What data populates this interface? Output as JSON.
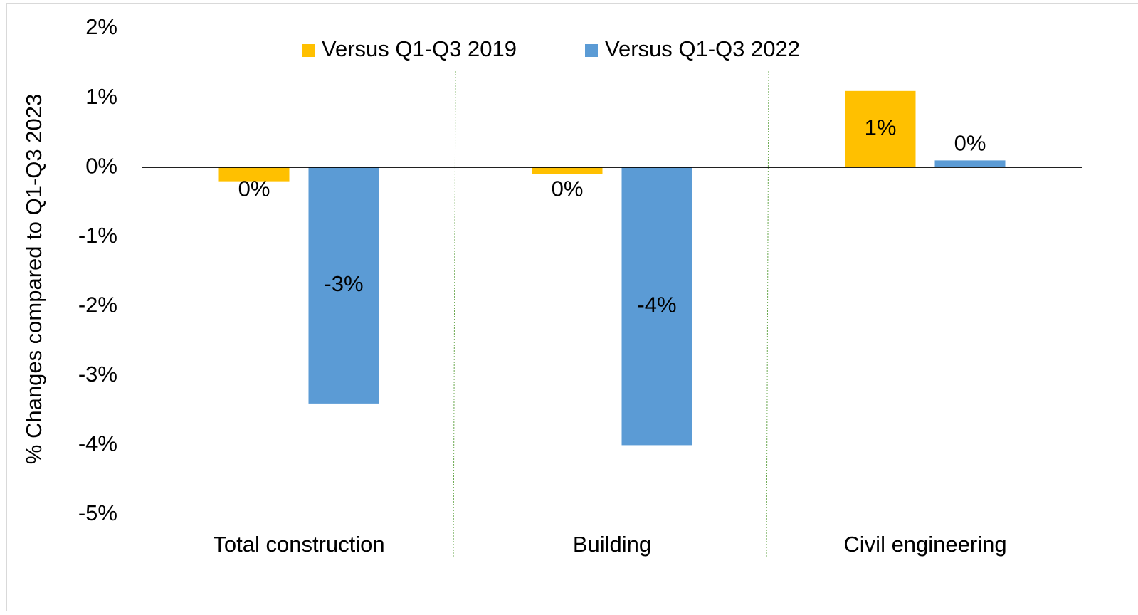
{
  "chart_data": {
    "type": "bar",
    "y_label": "% Changes compared to Q1-Q3 2023",
    "categories": [
      "Total construction",
      "Building",
      "Civil engineering"
    ],
    "series": [
      {
        "name": "Versus Q1-Q3 2019",
        "color": "#ffc000",
        "values": [
          -0.2,
          -0.1,
          1.1
        ],
        "value_labels": [
          "0%",
          "0%",
          "1%"
        ]
      },
      {
        "name": "Versus Q1-Q3 2022",
        "color": "#5b9bd5",
        "values": [
          -3.4,
          -4.0,
          0.1
        ],
        "value_labels": [
          "-3%",
          "-4%",
          "0%"
        ]
      }
    ],
    "ylim": [
      -5,
      2
    ],
    "yticks": [
      {
        "value": 2,
        "label": "2%"
      },
      {
        "value": 1,
        "label": "1%"
      },
      {
        "value": 0,
        "label": "0%"
      },
      {
        "value": -1,
        "label": "-1%"
      },
      {
        "value": -2,
        "label": "-2%"
      },
      {
        "value": -3,
        "label": "-3%"
      },
      {
        "value": -4,
        "label": "-4%"
      },
      {
        "value": -5,
        "label": "-5%"
      }
    ],
    "grid": false,
    "legend": "top"
  }
}
